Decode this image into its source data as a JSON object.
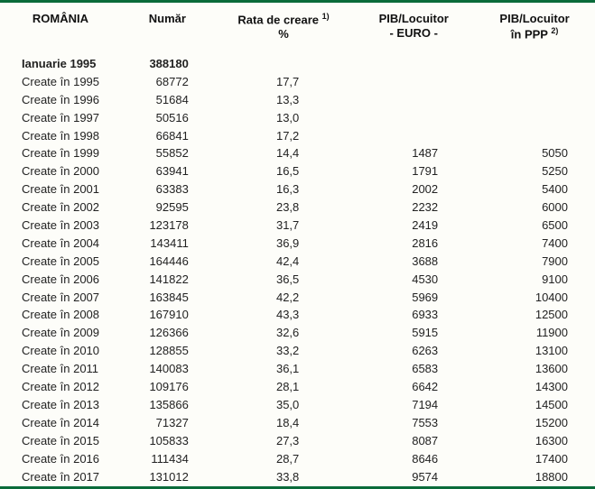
{
  "table": {
    "columns": {
      "c1": "ROMÂNIA",
      "c2": "Număr",
      "c3_line1": "Rata de creare ",
      "c3_sup": "1)",
      "c3_line2": "%",
      "c4_line1": "PIB/Locuitor",
      "c4_line2": "- EURO -",
      "c5_line1": "PIB/Locuitor",
      "c5_line2a": "în PPP ",
      "c5_sup": "2)"
    },
    "headerRow": {
      "label": "Ianuarie 1995",
      "numar": "388180"
    },
    "rows": [
      {
        "label": "Create în 1995",
        "numar": "68772",
        "rata": "17,7",
        "pib": "",
        "ppp": ""
      },
      {
        "label": "Create în 1996",
        "numar": "51684",
        "rata": "13,3",
        "pib": "",
        "ppp": ""
      },
      {
        "label": "Create în 1997",
        "numar": "50516",
        "rata": "13,0",
        "pib": "",
        "ppp": ""
      },
      {
        "label": "Create în 1998",
        "numar": "66841",
        "rata": "17,2",
        "pib": "",
        "ppp": ""
      },
      {
        "label": "Create în 1999",
        "numar": "55852",
        "rata": "14,4",
        "pib": "1487",
        "ppp": "5050"
      },
      {
        "label": "Create în 2000",
        "numar": "63941",
        "rata": "16,5",
        "pib": "1791",
        "ppp": "5250"
      },
      {
        "label": "Create în 2001",
        "numar": "63383",
        "rata": "16,3",
        "pib": "2002",
        "ppp": "5400"
      },
      {
        "label": "Create în 2002",
        "numar": "92595",
        "rata": "23,8",
        "pib": "2232",
        "ppp": "6000"
      },
      {
        "label": "Create în 2003",
        "numar": "123178",
        "rata": "31,7",
        "pib": "2419",
        "ppp": "6500"
      },
      {
        "label": "Create în 2004",
        "numar": "143411",
        "rata": "36,9",
        "pib": "2816",
        "ppp": "7400"
      },
      {
        "label": "Create în 2005",
        "numar": "164446",
        "rata": "42,4",
        "pib": "3688",
        "ppp": "7900"
      },
      {
        "label": "Create în 2006",
        "numar": "141822",
        "rata": "36,5",
        "pib": "4530",
        "ppp": "9100"
      },
      {
        "label": "Create în 2007",
        "numar": "163845",
        "rata": "42,2",
        "pib": "5969",
        "ppp": "10400"
      },
      {
        "label": "Create în 2008",
        "numar": "167910",
        "rata": "43,3",
        "pib": "6933",
        "ppp": "12500"
      },
      {
        "label": "Create în 2009",
        "numar": "126366",
        "rata": "32,6",
        "pib": "5915",
        "ppp": "11900"
      },
      {
        "label": "Create în 2010",
        "numar": "128855",
        "rata": "33,2",
        "pib": "6263",
        "ppp": "13100"
      },
      {
        "label": "Create în 2011",
        "numar": "140083",
        "rata": "36,1",
        "pib": "6583",
        "ppp": "13600"
      },
      {
        "label": "Create în 2012",
        "numar": "109176",
        "rata": "28,1",
        "pib": "6642",
        "ppp": "14300"
      },
      {
        "label": "Create în 2013",
        "numar": "135866",
        "rata": "35,0",
        "pib": "7194",
        "ppp": "14500"
      },
      {
        "label": "Create în 2014",
        "numar": "71327",
        "rata": "18,4",
        "pib": "7553",
        "ppp": "15200"
      },
      {
        "label": "Create în 2015",
        "numar": "105833",
        "rata": "27,3",
        "pib": "8087",
        "ppp": "16300"
      },
      {
        "label": "Create în 2016",
        "numar": "111434",
        "rata": "28,7",
        "pib": "8646",
        "ppp": "17400"
      },
      {
        "label": "Create în 2017",
        "numar": "131012",
        "rata": "33,8",
        "pib": "9574",
        "ppp": "18800"
      }
    ],
    "style": {
      "rule_color": "#0a6b3a",
      "background": "#fdfdf9",
      "font_family": "Arial",
      "header_fontsize_pt": 10,
      "cell_fontsize_pt": 10,
      "text_color": "#222222"
    }
  }
}
